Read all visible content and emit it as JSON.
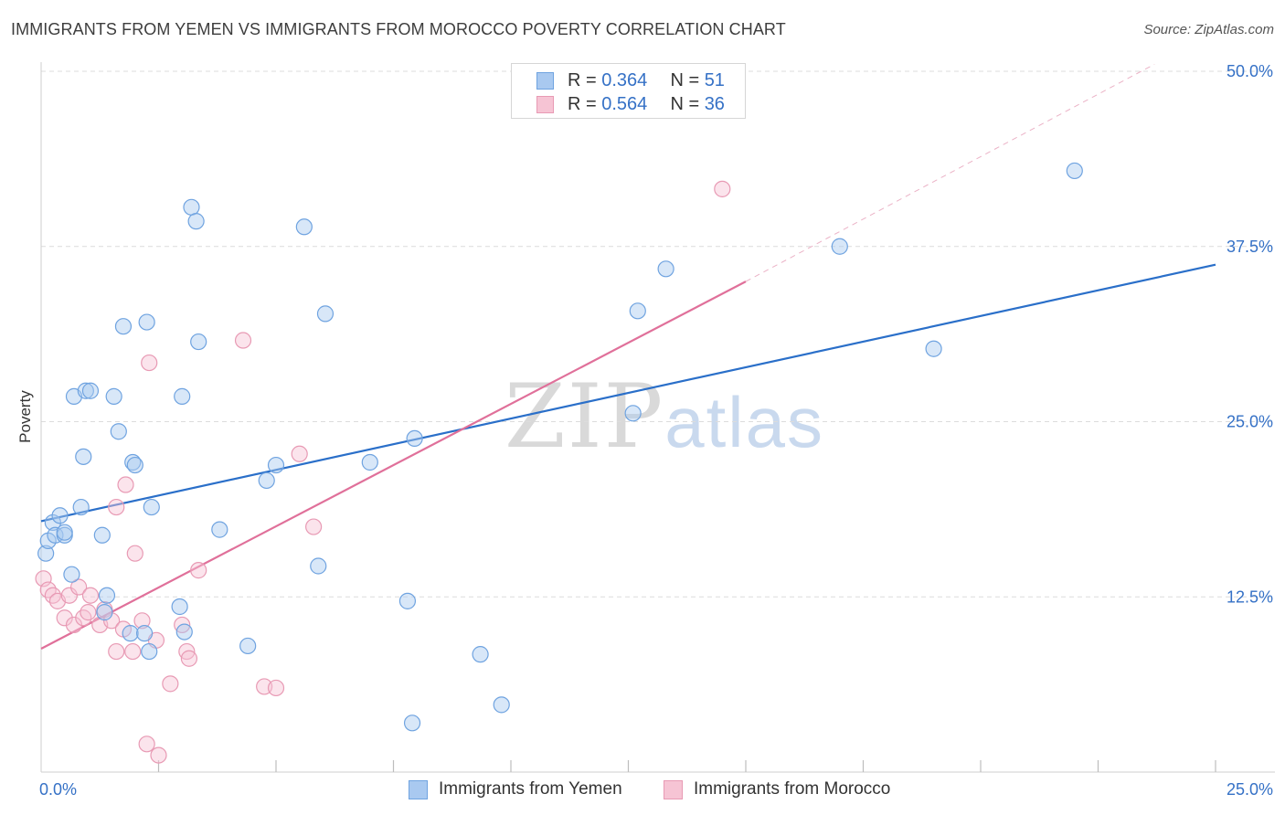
{
  "title": "IMMIGRANTS FROM YEMEN VS IMMIGRANTS FROM MOROCCO POVERTY CORRELATION CHART",
  "source": "Source: ZipAtlas.com",
  "watermark": {
    "zip": "ZIP",
    "atlas": "atlas"
  },
  "legend": {
    "rows": [
      {
        "r_label": "R = ",
        "r_value": "0.364",
        "n_label": "N = ",
        "n_value": "51"
      },
      {
        "r_label": "R = ",
        "r_value": "0.564",
        "n_label": "N = ",
        "n_value": "36"
      }
    ]
  },
  "chart_data": {
    "type": "scatter",
    "xlabel": "",
    "ylabel": "Poverty",
    "xlim": [
      0,
      25
    ],
    "ylim": [
      0,
      50
    ],
    "x_tick_labels": [
      {
        "value": 0,
        "label": "0.0%"
      },
      {
        "value": 25,
        "label": "25.0%"
      }
    ],
    "y_tick_labels": [
      {
        "value": 12.5,
        "label": "12.5%"
      },
      {
        "value": 25,
        "label": "25.0%"
      },
      {
        "value": 37.5,
        "label": "37.5%"
      },
      {
        "value": 50,
        "label": "50.0%"
      }
    ],
    "x_minor_ticks": [
      2.5,
      5,
      7.5,
      10,
      12.5,
      15,
      17.5,
      20,
      22.5,
      25
    ],
    "grid": true,
    "legend_position": "top-center",
    "series": [
      {
        "name": "Immigrants from Yemen",
        "color": "#6fa3e0",
        "fill": "#a9c9f0",
        "points": [
          [
            0.1,
            15.6
          ],
          [
            0.15,
            16.5
          ],
          [
            0.25,
            17.8
          ],
          [
            0.3,
            16.9
          ],
          [
            0.4,
            18.3
          ],
          [
            0.5,
            16.9
          ],
          [
            0.5,
            17.1
          ],
          [
            0.65,
            14.1
          ],
          [
            0.7,
            26.8
          ],
          [
            0.85,
            18.9
          ],
          [
            0.9,
            22.5
          ],
          [
            0.95,
            27.2
          ],
          [
            1.05,
            27.2
          ],
          [
            1.3,
            16.9
          ],
          [
            1.4,
            12.6
          ],
          [
            1.35,
            11.4
          ],
          [
            1.55,
            26.8
          ],
          [
            1.65,
            24.3
          ],
          [
            1.75,
            31.8
          ],
          [
            1.9,
            9.9
          ],
          [
            1.95,
            22.1
          ],
          [
            2.0,
            21.9
          ],
          [
            2.2,
            9.9
          ],
          [
            2.25,
            32.1
          ],
          [
            2.3,
            8.6
          ],
          [
            2.35,
            18.9
          ],
          [
            2.95,
            11.8
          ],
          [
            3.0,
            26.8
          ],
          [
            3.05,
            10.0
          ],
          [
            3.2,
            40.3
          ],
          [
            3.3,
            39.3
          ],
          [
            3.35,
            30.7
          ],
          [
            3.8,
            17.3
          ],
          [
            4.4,
            9.0
          ],
          [
            4.8,
            20.8
          ],
          [
            5.0,
            21.9
          ],
          [
            5.6,
            38.9
          ],
          [
            5.9,
            14.7
          ],
          [
            6.05,
            32.7
          ],
          [
            7.0,
            22.1
          ],
          [
            7.8,
            12.2
          ],
          [
            7.9,
            3.5
          ],
          [
            7.95,
            23.8
          ],
          [
            9.35,
            8.4
          ],
          [
            9.8,
            4.8
          ],
          [
            12.6,
            25.6
          ],
          [
            12.7,
            32.9
          ],
          [
            13.3,
            35.9
          ],
          [
            17.0,
            37.5
          ],
          [
            19.0,
            30.2
          ],
          [
            22.0,
            42.9
          ]
        ]
      },
      {
        "name": "Immigrants from Morocco",
        "color": "#e89ab4",
        "fill": "#f6c4d4",
        "points": [
          [
            0.05,
            13.8
          ],
          [
            0.15,
            13.0
          ],
          [
            0.25,
            12.6
          ],
          [
            0.35,
            12.2
          ],
          [
            0.5,
            11.0
          ],
          [
            0.6,
            12.6
          ],
          [
            0.7,
            10.5
          ],
          [
            0.8,
            13.2
          ],
          [
            0.9,
            11.0
          ],
          [
            1.0,
            11.4
          ],
          [
            1.05,
            12.6
          ],
          [
            1.25,
            10.5
          ],
          [
            1.35,
            11.6
          ],
          [
            1.5,
            10.8
          ],
          [
            1.6,
            18.9
          ],
          [
            1.6,
            8.6
          ],
          [
            1.75,
            10.2
          ],
          [
            1.8,
            20.5
          ],
          [
            1.95,
            8.6
          ],
          [
            2.0,
            15.6
          ],
          [
            2.15,
            10.8
          ],
          [
            2.25,
            2.0
          ],
          [
            2.3,
            29.2
          ],
          [
            2.45,
            9.4
          ],
          [
            2.5,
            1.2
          ],
          [
            2.75,
            6.3
          ],
          [
            3.0,
            10.5
          ],
          [
            3.1,
            8.6
          ],
          [
            3.15,
            8.1
          ],
          [
            3.35,
            14.4
          ],
          [
            4.3,
            30.8
          ],
          [
            4.75,
            6.1
          ],
          [
            5.0,
            6.0
          ],
          [
            5.5,
            22.7
          ],
          [
            5.8,
            17.5
          ],
          [
            14.5,
            41.6
          ]
        ]
      }
    ],
    "trend_lines": [
      {
        "series": "Immigrants from Yemen",
        "x": [
          0,
          25
        ],
        "y": [
          17.9,
          36.2
        ],
        "style": "solid"
      },
      {
        "series": "Immigrants from Morocco",
        "x": [
          0,
          15.0
        ],
        "y": [
          8.8,
          35.0
        ],
        "style": "solid"
      },
      {
        "series": "Immigrants from Morocco",
        "x": [
          15.0,
          23.7
        ],
        "y": [
          35.0,
          50.5
        ],
        "style": "dashed"
      }
    ]
  }
}
